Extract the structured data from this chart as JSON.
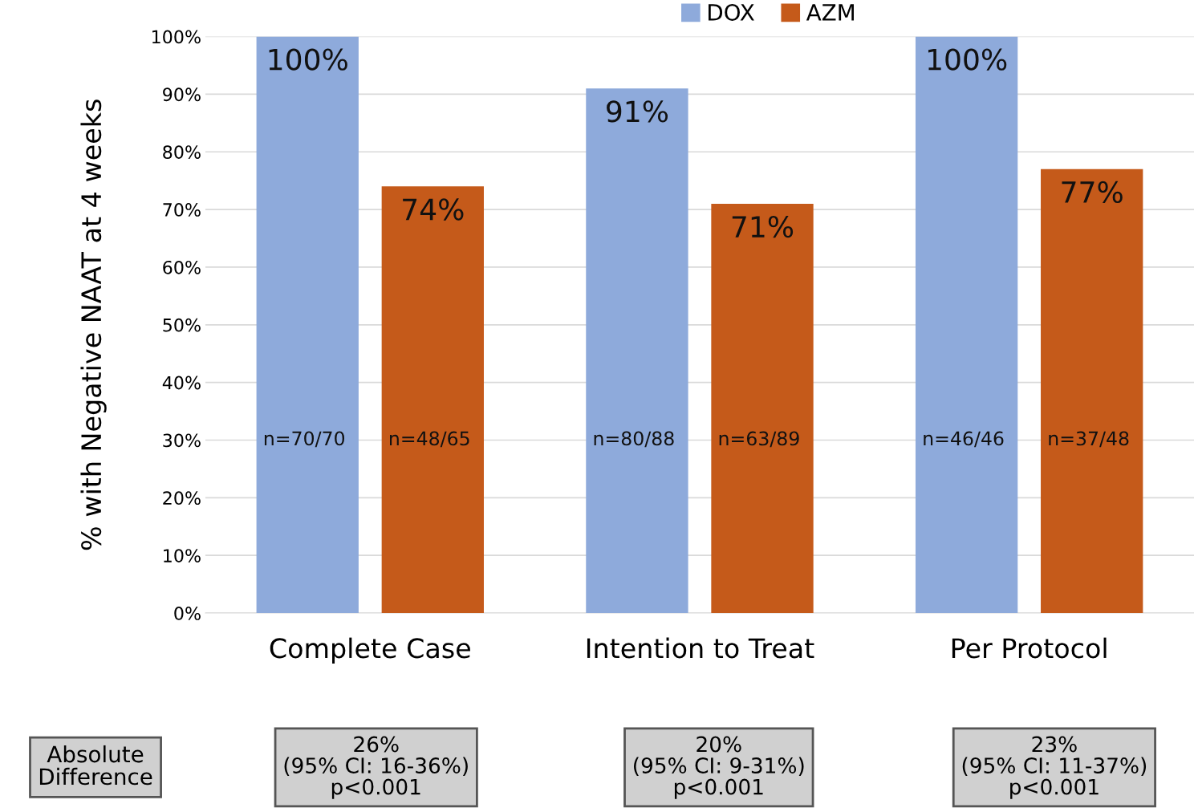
{
  "chart_data": {
    "type": "bar",
    "ylabel": "% with Negative NAAT at 4 weeks",
    "categories": [
      "Complete Case",
      "Intention to Treat",
      "Per Protocol"
    ],
    "series": [
      {
        "name": "DOX",
        "color": "#8eaadb",
        "values": [
          100,
          91,
          100
        ],
        "value_labels": [
          "100%",
          "91%",
          "100%"
        ]
      },
      {
        "name": "AZM",
        "color": "#c55a1a",
        "values": [
          74,
          71,
          77
        ],
        "value_labels": [
          "74%",
          "71%",
          "77%"
        ]
      }
    ],
    "ylim": [
      0,
      100
    ],
    "yticks": [
      {
        "value": 0,
        "label": "0%"
      },
      {
        "value": 10,
        "label": "10%"
      },
      {
        "value": 20,
        "label": "20%"
      },
      {
        "value": 30,
        "label": "30%"
      },
      {
        "value": 40,
        "label": "40%"
      },
      {
        "value": 50,
        "label": "50%"
      },
      {
        "value": 60,
        "label": "60%"
      },
      {
        "value": 70,
        "label": "70%"
      },
      {
        "value": 80,
        "label": "80%"
      },
      {
        "value": 90,
        "label": "90%"
      },
      {
        "value": 100,
        "label": "100%"
      }
    ],
    "grid": "y",
    "legend": "top",
    "annotations": [
      "n=70/70",
      "n=48/65",
      "n=80/88",
      "n=63/89",
      "n=46/46",
      "n=37/48",
      "Absolute Difference",
      "26%\n(95% CI: 16-36%)\np<0.001",
      "20%\n(95% CI: 9-31%)\np<0.001",
      "23%\n(95% CI: 11-37%)\np<0.001"
    ]
  }
}
